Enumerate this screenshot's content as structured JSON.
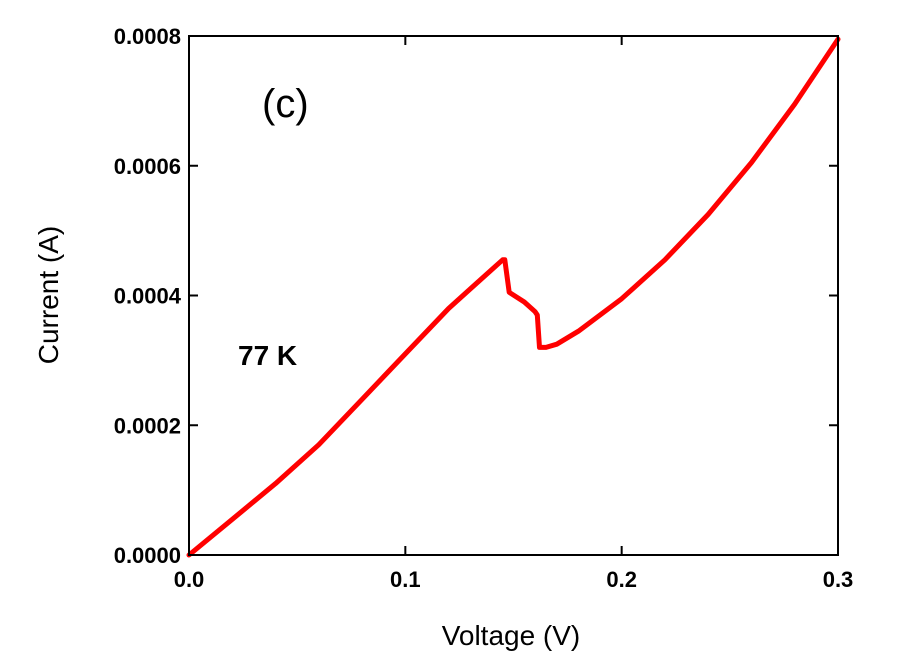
{
  "chart_data": {
    "type": "line",
    "xlabel": "Voltage (V)",
    "ylabel": "Current (A)",
    "xlim": [
      0.0,
      0.3
    ],
    "ylim": [
      0.0,
      0.0008
    ],
    "x_ticks": [
      "0.0",
      "0.1",
      "0.2",
      "0.3"
    ],
    "y_ticks": [
      "0.0000",
      "0.0002",
      "0.0004",
      "0.0006",
      "0.0008"
    ],
    "annotations": [
      "(c)",
      "77 K"
    ],
    "grid": false,
    "legend": "none",
    "colors": {
      "series": "#ff0000",
      "axes": "#000000"
    },
    "series": [
      {
        "x": [
          0.0,
          0.02,
          0.04,
          0.06,
          0.08,
          0.1,
          0.12,
          0.13,
          0.14,
          0.145,
          0.146,
          0.148,
          0.155,
          0.16,
          0.161,
          0.162,
          0.165,
          0.17,
          0.18,
          0.2,
          0.22,
          0.24,
          0.26,
          0.28,
          0.3
        ],
        "y": [
          0.0,
          5.5e-05,
          0.00011,
          0.00017,
          0.00024,
          0.00031,
          0.00038,
          0.00041,
          0.00044,
          0.000455,
          0.000455,
          0.000405,
          0.00039,
          0.000375,
          0.00037,
          0.00032,
          0.00032,
          0.000325,
          0.000345,
          0.000395,
          0.000455,
          0.000525,
          0.000605,
          0.000695,
          0.000795
        ]
      }
    ]
  }
}
